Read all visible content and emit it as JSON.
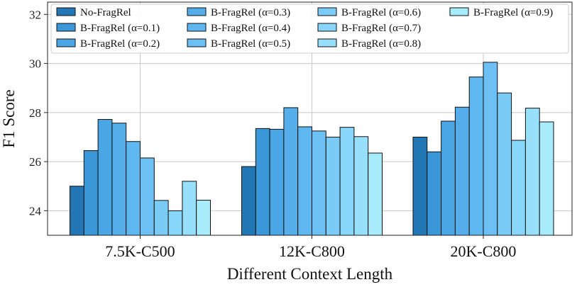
{
  "chart_data": {
    "type": "bar",
    "title": "",
    "xlabel": "Different Context Length",
    "ylabel": "F1 Score",
    "ylim": [
      23,
      32.5
    ],
    "yticks": [
      24,
      26,
      28,
      30,
      32
    ],
    "grid": true,
    "legend_position": "top",
    "categories": [
      "7.5K-C500",
      "12K-C800",
      "20K-C800"
    ],
    "series": [
      {
        "name": "No-FragRel",
        "color": "#2277b4",
        "values": [
          25.0,
          25.8,
          27.0
        ]
      },
      {
        "name": "B-FragRel (α=0.1)",
        "color": "#3a98d8",
        "values": [
          26.45,
          27.35,
          26.4
        ]
      },
      {
        "name": "B-FragRel (α=0.2)",
        "color": "#4aa6e4",
        "values": [
          27.72,
          27.32,
          27.65
        ]
      },
      {
        "name": "B-FragRel (α=0.3)",
        "color": "#55aeea",
        "values": [
          27.57,
          28.2,
          28.22
        ]
      },
      {
        "name": "B-FragRel (α=0.4)",
        "color": "#5fb7ef",
        "values": [
          26.82,
          27.42,
          29.45
        ]
      },
      {
        "name": "B-FragRel (α=0.5)",
        "color": "#6cc0f3",
        "values": [
          26.15,
          27.25,
          30.05
        ]
      },
      {
        "name": "B-FragRel (α=0.6)",
        "color": "#7acbf6",
        "values": [
          24.42,
          27.0,
          28.8
        ]
      },
      {
        "name": "B-FragRel (α=0.7)",
        "color": "#88d6f9",
        "values": [
          24.0,
          27.4,
          26.87
        ]
      },
      {
        "name": "B-FragRel (α=0.8)",
        "color": "#97dffa",
        "values": [
          25.2,
          27.02,
          28.18
        ]
      },
      {
        "name": "B-FragRel (α=0.9)",
        "color": "#a8ecfc",
        "values": [
          24.43,
          26.35,
          27.62
        ]
      }
    ]
  }
}
